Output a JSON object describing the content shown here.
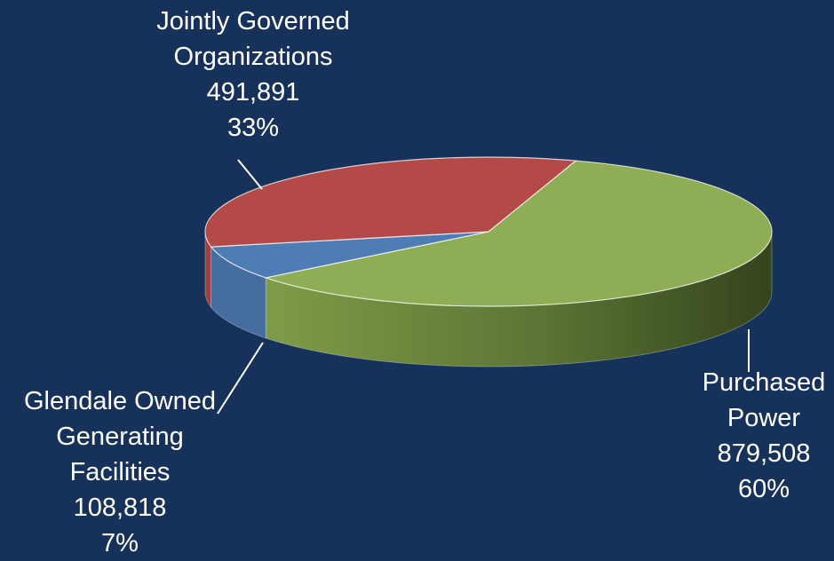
{
  "chart_data": {
    "type": "pie",
    "style": "3d",
    "title": "",
    "legend": "none",
    "slices": [
      {
        "name": "Purchased Power",
        "label_lines": [
          "Purchased",
          "Power"
        ],
        "value": 879508,
        "value_label": "879,508",
        "percent": 60,
        "percent_label": "60%",
        "color": "#8fad55"
      },
      {
        "name": "Glendale Owned Generating Facilities",
        "label_lines": [
          "Glendale Owned",
          "Generating",
          "Facilities"
        ],
        "value": 108818,
        "value_label": "108,818",
        "percent": 7,
        "percent_label": "7%",
        "color": "#4e7cb5"
      },
      {
        "name": "Jointly Governed Organizations",
        "label_lines": [
          "Jointly Governed",
          "Organizations"
        ],
        "value": 491891,
        "value_label": "491,891",
        "percent": 33,
        "percent_label": "33%",
        "color": "#b34a47"
      }
    ]
  },
  "colors": {
    "background": "#17325a",
    "label_text": "#ffffff"
  }
}
